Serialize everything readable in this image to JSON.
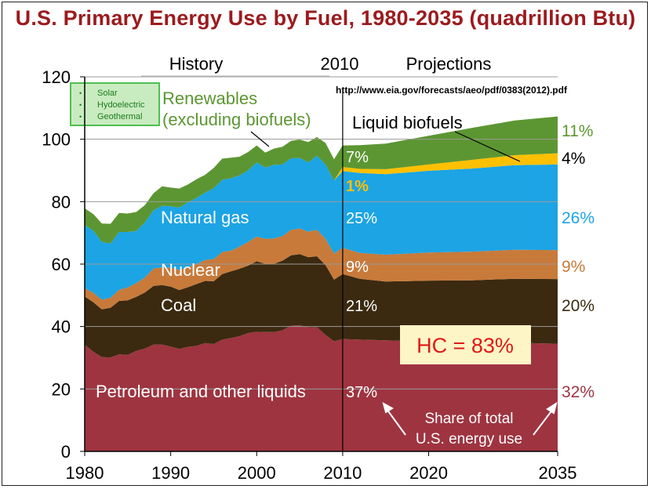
{
  "title": "U.S. Primary Energy Use by Fuel, 1980-2035 (quadrillion Btu)",
  "header_labels": {
    "history": "History",
    "year_2010": "2010",
    "projections": "Projections"
  },
  "source_url": "http://www.eia.gov/forecasts/aeo/pdf/0383(2012).pdf",
  "legend_box": {
    "items": [
      "Solar",
      "Hydoelectric",
      "Geothermal"
    ],
    "bullet": "•"
  },
  "colors": {
    "title": "#9b1b1e",
    "petroleum": "#9e3440",
    "coal": "#3b2a10",
    "nuclear": "#c87a3a",
    "natural_gas": "#1ca4e4",
    "biofuels": "#ffc000",
    "renewables": "#5c9632",
    "hc_text": "#e01818",
    "hc_bg": "#fdf5c5"
  },
  "annotations": {
    "renewables_line1": "Renewables",
    "renewables_line2": "(excluding biofuels)",
    "liquid_biofuels": "Liquid biofuels",
    "natural_gas": "Natural gas",
    "nuclear": "Nuclear",
    "coal": "Coal",
    "petroleum": "Petroleum and other liquids",
    "hc": "HC = 83%",
    "share_line1": "Share of total",
    "share_line2": "U.S. energy use"
  },
  "shares_2010": {
    "renewables": "7%",
    "biofuels": "1%",
    "natural_gas": "25%",
    "nuclear": "9%",
    "coal": "21%",
    "petroleum": "37%"
  },
  "shares_2035": {
    "renewables": "11%",
    "biofuels": "4%",
    "natural_gas": "26%",
    "nuclear": "9%",
    "coal": "20%",
    "petroleum": "32%"
  },
  "chart_data": {
    "type": "area",
    "title": "U.S. Primary Energy Use by Fuel, 1980-2035 (quadrillion Btu)",
    "xlim": [
      1980,
      2035
    ],
    "ylim": [
      0,
      120
    ],
    "x_ticks": [
      1980,
      1990,
      2000,
      2010,
      2020,
      2035
    ],
    "y_ticks": [
      0,
      20,
      40,
      60,
      80,
      100,
      120
    ],
    "grid": "horizontal",
    "stacked": true,
    "x": [
      1980,
      1981,
      1982,
      1983,
      1984,
      1985,
      1986,
      1987,
      1988,
      1989,
      1990,
      1991,
      1992,
      1993,
      1994,
      1995,
      1996,
      1997,
      1998,
      1999,
      2000,
      2001,
      2002,
      2003,
      2004,
      2005,
      2006,
      2007,
      2008,
      2009,
      2010,
      2012,
      2015,
      2020,
      2025,
      2030,
      2035
    ],
    "series": [
      {
        "name": "Petroleum and other liquids",
        "values": [
          34.2,
          31.9,
          30.2,
          30.1,
          31.1,
          30.9,
          32.2,
          32.9,
          34.2,
          34.2,
          33.6,
          32.8,
          33.5,
          33.8,
          34.7,
          34.4,
          35.8,
          36.3,
          36.9,
          37.9,
          38.3,
          38.2,
          38.2,
          38.8,
          40.3,
          40.4,
          39.8,
          39.8,
          37.3,
          35.3,
          36.0,
          35.8,
          35.6,
          35.2,
          34.8,
          34.8,
          34.5
        ]
      },
      {
        "name": "Coal",
        "values": [
          15.4,
          15.9,
          15.3,
          15.9,
          17.1,
          17.5,
          17.3,
          18.0,
          18.8,
          19.1,
          19.2,
          18.9,
          19.1,
          19.8,
          19.9,
          20.1,
          21.0,
          21.4,
          21.6,
          21.6,
          22.6,
          21.9,
          21.9,
          22.3,
          22.5,
          22.8,
          22.4,
          22.7,
          22.4,
          19.7,
          20.8,
          19.5,
          18.8,
          19.5,
          20.0,
          20.5,
          20.7
        ]
      },
      {
        "name": "Nuclear",
        "values": [
          2.7,
          3.0,
          3.1,
          3.2,
          3.6,
          4.1,
          4.4,
          4.8,
          5.6,
          5.7,
          6.1,
          6.4,
          6.5,
          6.4,
          6.7,
          7.1,
          7.1,
          6.6,
          7.1,
          7.6,
          7.9,
          8.0,
          8.1,
          7.9,
          8.2,
          8.2,
          8.2,
          8.5,
          8.4,
          8.4,
          8.4,
          8.3,
          8.6,
          9.0,
          9.2,
          9.3,
          9.3
        ]
      },
      {
        "name": "Natural gas",
        "values": [
          20.2,
          19.9,
          18.5,
          17.4,
          18.5,
          17.8,
          16.7,
          17.7,
          18.6,
          19.7,
          19.6,
          20.0,
          20.7,
          21.2,
          21.6,
          22.7,
          23.1,
          23.2,
          22.8,
          22.9,
          23.8,
          22.8,
          23.6,
          22.9,
          22.9,
          22.6,
          22.2,
          23.7,
          23.8,
          23.4,
          24.6,
          25.6,
          25.8,
          26.2,
          26.6,
          27.1,
          27.4
        ]
      },
      {
        "name": "Liquid biofuels",
        "values": [
          0,
          0,
          0,
          0,
          0,
          0,
          0,
          0,
          0,
          0,
          0,
          0,
          0,
          0,
          0,
          0,
          0,
          0,
          0,
          0,
          0,
          0,
          0,
          0,
          0,
          0,
          0,
          0,
          0,
          0,
          1.3,
          1.3,
          1.6,
          2.0,
          2.8,
          3.2,
          3.6
        ]
      },
      {
        "name": "Renewables (excluding biofuels)",
        "values": [
          5.4,
          5.3,
          5.9,
          6.3,
          6.1,
          5.9,
          6.1,
          5.5,
          5.5,
          6.2,
          6.0,
          6.1,
          5.7,
          6.0,
          5.7,
          6.5,
          6.8,
          6.6,
          6.0,
          5.9,
          5.4,
          4.8,
          5.2,
          5.7,
          5.6,
          5.9,
          6.5,
          6.0,
          6.9,
          6.8,
          6.9,
          7.6,
          8.2,
          9.2,
          10.2,
          11.1,
          11.8
        ]
      }
    ]
  }
}
